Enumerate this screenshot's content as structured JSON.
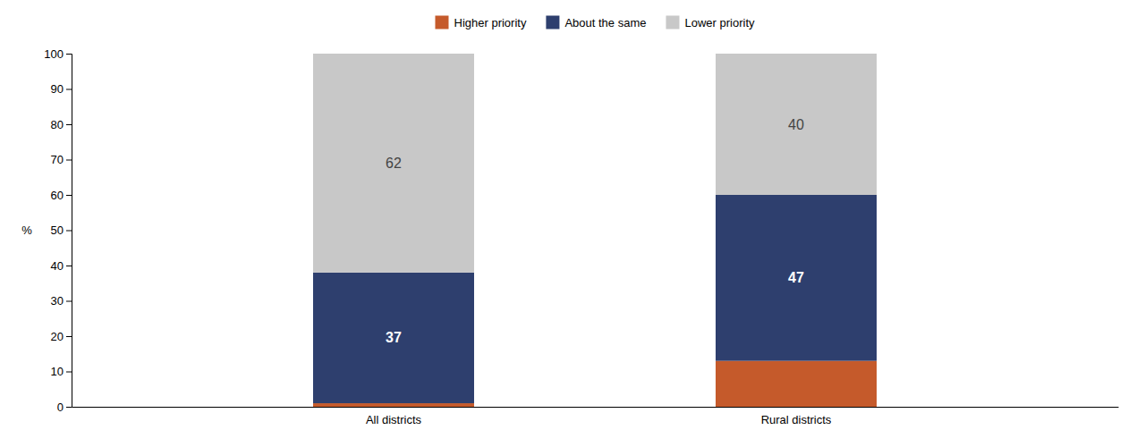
{
  "chart_data": {
    "type": "bar",
    "stacked": true,
    "categories": [
      "All districts",
      "Rural districts"
    ],
    "series": [
      {
        "name": "Higher priority",
        "color": "#c55a2b",
        "values": [
          1,
          13
        ]
      },
      {
        "name": "About the same",
        "color": "#2e3f6e",
        "values": [
          37,
          47
        ],
        "data_labels": true
      },
      {
        "name": "Lower priority",
        "color": "#c8c8c8",
        "values": [
          62,
          40
        ],
        "data_labels": true
      }
    ],
    "y_label": "%",
    "ylim": [
      0,
      100
    ],
    "yticks": [
      0,
      10,
      20,
      30,
      40,
      50,
      60,
      70,
      80,
      90,
      100
    ],
    "grid": false,
    "legend": "top"
  }
}
